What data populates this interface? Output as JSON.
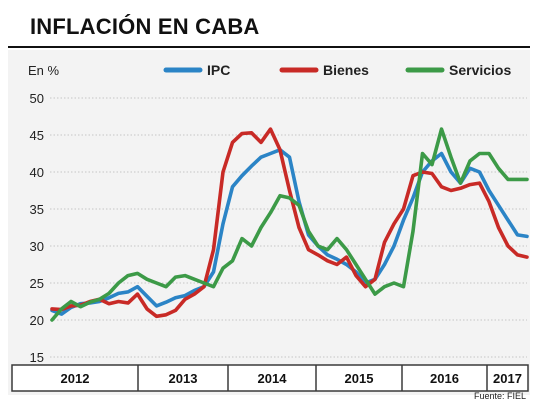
{
  "header": {
    "title": "INFLACIÓN EN CABA"
  },
  "source": "Fuente: FIEL",
  "chart_data": {
    "type": "line",
    "ylabel": "En %",
    "ylim": [
      15,
      50
    ],
    "yticks": [
      15,
      20,
      25,
      30,
      35,
      40,
      45,
      50
    ],
    "grid": true,
    "legend_position": "top",
    "year_labels": [
      "2012",
      "2013",
      "2014",
      "2015",
      "2016",
      "2017"
    ],
    "x": [
      2012.0,
      2012.1,
      2012.2,
      2012.3,
      2012.4,
      2012.5,
      2012.6,
      2012.7,
      2012.8,
      2012.9,
      2013.0,
      2013.1,
      2013.2,
      2013.3,
      2013.4,
      2013.5,
      2013.6,
      2013.7,
      2013.8,
      2013.9,
      2014.0,
      2014.1,
      2014.2,
      2014.3,
      2014.4,
      2014.5,
      2014.6,
      2014.7,
      2014.8,
      2014.9,
      2015.0,
      2015.1,
      2015.2,
      2015.3,
      2015.4,
      2015.5,
      2015.6,
      2015.7,
      2015.8,
      2015.9,
      2016.0,
      2016.1,
      2016.2,
      2016.3,
      2016.4,
      2016.5,
      2016.6,
      2016.7,
      2016.8,
      2016.9,
      2017.0
    ],
    "series": [
      {
        "name": "IPC",
        "color": "#2b84c6",
        "values": [
          21.3,
          20.8,
          21.7,
          22.2,
          22.3,
          22.5,
          23.0,
          23.6,
          23.8,
          24.5,
          23.2,
          21.9,
          22.4,
          23.0,
          23.3,
          24.0,
          24.5,
          26.5,
          33.0,
          38.0,
          39.5,
          40.8,
          42.0,
          42.5,
          43.0,
          42.0,
          36.0,
          31.5,
          30.0,
          28.8,
          28.2,
          27.5,
          26.5,
          25.0,
          25.5,
          27.5,
          30.0,
          33.5,
          36.5,
          40.0,
          41.5,
          42.5,
          40.0,
          38.5,
          40.5,
          40.0,
          37.5,
          35.5,
          33.5,
          31.5,
          31.3
        ]
      },
      {
        "name": "Bienes",
        "color": "#c82a26",
        "values": [
          21.5,
          21.4,
          21.9,
          22.0,
          22.5,
          22.8,
          22.2,
          22.5,
          22.3,
          23.5,
          21.5,
          20.5,
          20.7,
          21.3,
          22.8,
          23.5,
          24.5,
          29.5,
          40.0,
          44.0,
          45.2,
          45.3,
          44.0,
          45.8,
          43.0,
          37.5,
          32.5,
          29.5,
          28.8,
          28.0,
          27.5,
          28.5,
          26.0,
          24.5,
          25.5,
          30.5,
          33.0,
          35.0,
          39.5,
          40.0,
          39.8,
          38.0,
          37.5,
          37.8,
          38.3,
          38.5,
          36.0,
          32.5,
          30.0,
          28.8,
          28.5
        ]
      },
      {
        "name": "Servicios",
        "color": "#3c9a47",
        "values": [
          20.0,
          21.5,
          22.5,
          21.8,
          22.4,
          22.8,
          23.6,
          25.0,
          26.0,
          26.3,
          25.5,
          25.0,
          24.5,
          25.8,
          26.0,
          25.5,
          25.0,
          24.5,
          27.0,
          28.0,
          31.0,
          30.0,
          32.5,
          34.5,
          36.8,
          36.5,
          35.5,
          32.0,
          30.0,
          29.5,
          31.0,
          29.5,
          27.5,
          25.5,
          23.5,
          24.5,
          25.0,
          24.5,
          32.0,
          42.5,
          41.0,
          45.8,
          42.0,
          38.5,
          41.5,
          42.5,
          42.5,
          40.5,
          39.0,
          39.0,
          39.0
        ]
      }
    ]
  }
}
